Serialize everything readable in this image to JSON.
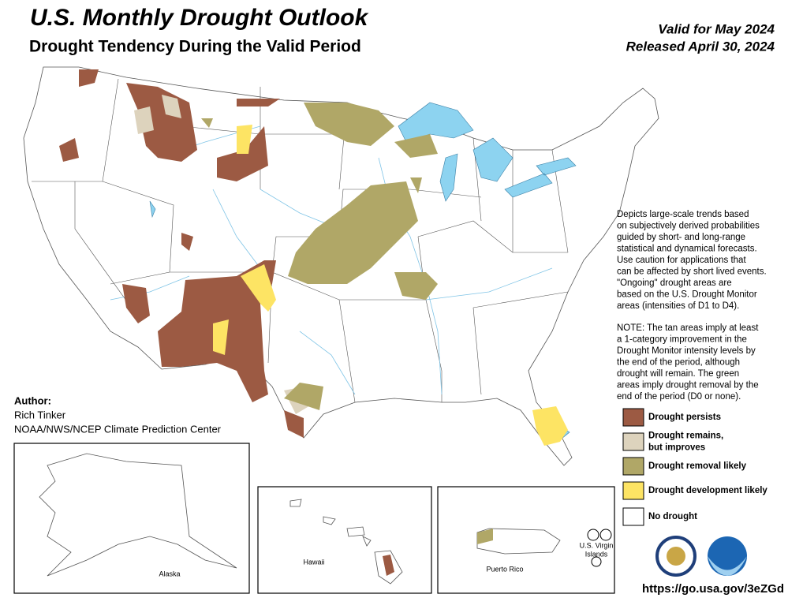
{
  "header": {
    "title": "U.S. Monthly Drought Outlook",
    "subtitle": "Drought Tendency During the Valid Period",
    "valid": "Valid for May 2024",
    "released": "Released April 30, 2024"
  },
  "description": [
    "Depicts large-scale trends based",
    "on subjectively derived probabilities",
    "guided by short- and long-range",
    "statistical and dynamical forecasts.",
    "Use caution for applications that",
    "can be affected by short lived events.",
    "\"Ongoing\" drought areas are",
    "based on the U.S. Drought Monitor",
    "areas (intensities of D1 to D4)."
  ],
  "note": [
    "NOTE: The tan areas imply at least",
    "a 1-category improvement in the",
    "Drought Monitor intensity levels by",
    "the end of the period, although",
    "drought will remain. The green",
    "areas imply drought removal by the",
    "end of the period (D0 or none)."
  ],
  "author": {
    "label": "Author:",
    "name": "Rich Tinker",
    "org": "NOAA/NWS/NCEP Climate Prediction Center"
  },
  "legend": [
    {
      "lines": [
        "Drought persists"
      ],
      "color": "#9c5a43"
    },
    {
      "lines": [
        "Drought remains,",
        "but improves"
      ],
      "color": "#ddd3bd"
    },
    {
      "lines": [
        "Drought removal likely"
      ],
      "color": "#b0a767"
    },
    {
      "lines": [
        "Drought development likely"
      ],
      "color": "#fde464"
    },
    {
      "lines": [
        "No drought"
      ],
      "color": "#ffffff"
    }
  ],
  "insets": {
    "alaska": "Alaska",
    "hawaii": "Hawaii",
    "puerto_rico": "Puerto Rico",
    "virgin_islands": [
      "U.S. Virgin",
      "Islands"
    ]
  },
  "url": "https://go.usa.gov/3eZGd"
}
